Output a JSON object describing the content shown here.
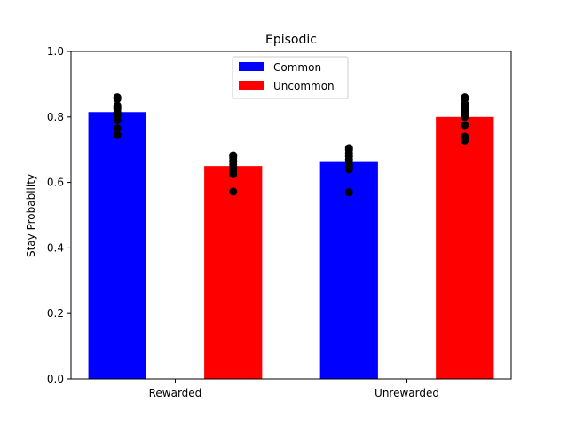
{
  "chart_data": {
    "type": "bar",
    "title": "Episodic",
    "xlabel": "",
    "ylabel": "Stay Probability",
    "categories": [
      "Rewarded",
      "Unrewarded"
    ],
    "ylim": [
      0,
      1.0
    ],
    "yticks": [
      "0.0",
      "0.2",
      "0.4",
      "0.6",
      "0.8",
      "1.0"
    ],
    "grid": false,
    "legend_placement": "upper-center",
    "series": [
      {
        "name": "Common",
        "color": "#0000ff",
        "values": [
          0.815,
          0.665
        ],
        "points": [
          [
            0.745,
            0.765,
            0.79,
            0.805,
            0.815,
            0.825,
            0.83,
            0.835,
            0.855,
            0.86
          ],
          [
            0.57,
            0.64,
            0.65,
            0.66,
            0.67,
            0.68,
            0.69,
            0.7,
            0.705
          ]
        ]
      },
      {
        "name": "Uncommon",
        "color": "#ff0000",
        "values": [
          0.65,
          0.8
        ],
        "points": [
          [
            0.572,
            0.625,
            0.635,
            0.645,
            0.655,
            0.665,
            0.675,
            0.68,
            0.683
          ],
          [
            0.728,
            0.74,
            0.775,
            0.8,
            0.81,
            0.82,
            0.83,
            0.84,
            0.855,
            0.86
          ]
        ]
      }
    ]
  }
}
